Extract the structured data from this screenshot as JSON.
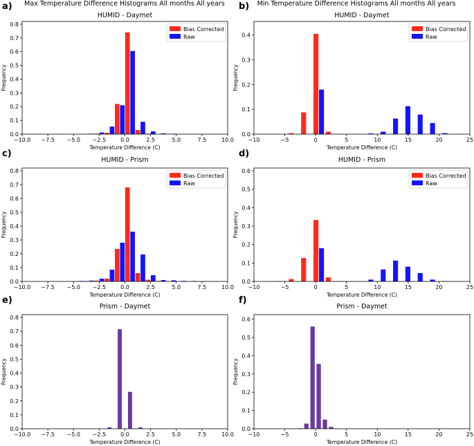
{
  "colors": {
    "bias": "#ff2a1a",
    "raw": "#1414ff",
    "diff": "#6a3aa0"
  },
  "chart_data": [
    {
      "panel": "a)",
      "type": "bar",
      "suptitle": "Max Temperature Difference Histograms All months All years",
      "title": "HUMID - Daymet",
      "xlabel": "Temperature Difference (C)",
      "ylabel": "Frequency",
      "xlim": [
        -10,
        10
      ],
      "ylim": [
        0,
        0.8
      ],
      "xticks": [
        -10,
        -7.5,
        -5,
        -2.5,
        0,
        2.5,
        5,
        7.5,
        10
      ],
      "xtick_labels": [
        "−10.0",
        "−7.5",
        "−5.0",
        "−2.5",
        "0.0",
        "2.5",
        "5.0",
        "7.5",
        "10.0"
      ],
      "yticks": [
        0,
        0.1,
        0.2,
        0.3,
        0.4,
        0.5,
        0.6,
        0.7,
        0.8
      ],
      "ytick_labels": [
        "0.0",
        "0.1",
        "0.2",
        "0.3",
        "0.4",
        "0.5",
        "0.6",
        "0.7",
        "0.8"
      ],
      "bar_width": 0.45,
      "x": [
        -3.5,
        -2.5,
        -1.5,
        -0.5,
        0.5,
        1.5,
        2.5,
        3.5,
        4.5,
        5.5,
        6.5,
        7.5
      ],
      "series": [
        {
          "name": "Bias Corrected",
          "color_key": "bias",
          "offset": -0.25,
          "values": [
            0.002,
            0.004,
            0.01,
            0.22,
            0.74,
            0.03,
            0.004,
            0.001,
            0,
            0,
            0,
            0
          ]
        },
        {
          "name": "Raw",
          "color_key": "raw",
          "offset": 0.25,
          "values": [
            0.003,
            0.012,
            0.055,
            0.21,
            0.605,
            0.09,
            0.02,
            0.006,
            0.003,
            0.002,
            0.001,
            0.001
          ]
        }
      ],
      "legend": "top-right"
    },
    {
      "panel": "b)",
      "type": "bar",
      "suptitle": "Min Temperature Difference Histograms All months All years",
      "title": "HUMID - Daymet",
      "xlabel": "Temperature Difference (C)",
      "ylabel": "Frequency",
      "xlim": [
        -10,
        25
      ],
      "ylim": [
        0,
        0.45
      ],
      "xticks": [
        -10,
        -5,
        0,
        5,
        10,
        15,
        20,
        25
      ],
      "xtick_labels": [
        "−10",
        "−5",
        "0",
        "5",
        "10",
        "15",
        "20",
        "25"
      ],
      "yticks": [
        0,
        0.1,
        0.2,
        0.3,
        0.4
      ],
      "ytick_labels": [
        "0.0",
        "0.1",
        "0.2",
        "0.3",
        "0.4"
      ],
      "bar_width": 0.8,
      "x": [
        -3.5,
        -1.5,
        0.5,
        2.5,
        8.5,
        10.5,
        12.5,
        14.5,
        16.5,
        18.5,
        20.5
      ],
      "series": [
        {
          "name": "Bias Corrected",
          "color_key": "bias",
          "offset": -0.45,
          "values": [
            0.004,
            0.088,
            0.405,
            0.01,
            0,
            0,
            0,
            0,
            0,
            0,
            0
          ]
        },
        {
          "name": "Raw",
          "color_key": "raw",
          "offset": 0.45,
          "values": [
            0,
            0,
            0.18,
            0,
            0.003,
            0.01,
            0.063,
            0.113,
            0.079,
            0.045,
            0.004
          ]
        }
      ],
      "legend": "top-right"
    },
    {
      "panel": "c)",
      "type": "bar",
      "title": "HUMID - Prism",
      "xlabel": "Temperature Difference (C)",
      "ylabel": "Frequency",
      "xlim": [
        -10,
        10
      ],
      "ylim": [
        0,
        0.8
      ],
      "xticks": [
        -10,
        -7.5,
        -5,
        -2.5,
        0,
        2.5,
        5,
        7.5,
        10
      ],
      "xtick_labels": [
        "−10.0",
        "−7.5",
        "−5.0",
        "−2.5",
        "0.0",
        "2.5",
        "5.0",
        "7.5",
        "10.0"
      ],
      "yticks": [
        0,
        0.1,
        0.2,
        0.3,
        0.4,
        0.5,
        0.6,
        0.7,
        0.8
      ],
      "ytick_labels": [
        "0.0",
        "0.1",
        "0.2",
        "0.3",
        "0.4",
        "0.5",
        "0.6",
        "0.7",
        "0.8"
      ],
      "bar_width": 0.45,
      "x": [
        -4.5,
        -3.5,
        -2.5,
        -1.5,
        -0.5,
        0.5,
        1.5,
        2.5,
        3.5,
        4.5,
        5.5,
        6.5,
        7.5,
        8.5
      ],
      "series": [
        {
          "name": "Bias Corrected",
          "color_key": "bias",
          "offset": -0.25,
          "values": [
            0,
            0.003,
            0.006,
            0.02,
            0.235,
            0.68,
            0.06,
            0.012,
            0.004,
            0.001,
            0,
            0,
            0,
            0
          ]
        },
        {
          "name": "Raw",
          "color_key": "raw",
          "offset": 0.25,
          "values": [
            0.003,
            0.006,
            0.02,
            0.085,
            0.28,
            0.36,
            0.195,
            0.045,
            0.01,
            0.008,
            0.004,
            0.003,
            0.002,
            0.002
          ]
        }
      ],
      "legend": "top-right"
    },
    {
      "panel": "d)",
      "type": "bar",
      "title": "HUMID - Prism",
      "xlabel": "Temperature Difference (C)",
      "ylabel": "Frequency",
      "xlim": [
        -10,
        25
      ],
      "ylim": [
        0,
        0.6
      ],
      "xticks": [
        -10,
        -5,
        0,
        5,
        10,
        15,
        20,
        25
      ],
      "xtick_labels": [
        "−10",
        "−5",
        "0",
        "5",
        "10",
        "15",
        "20",
        "25"
      ],
      "yticks": [
        0,
        0.1,
        0.2,
        0.3,
        0.4,
        0.5,
        0.6
      ],
      "ytick_labels": [
        "0.0",
        "0.1",
        "0.2",
        "0.3",
        "0.4",
        "0.5",
        "0.6"
      ],
      "bar_width": 0.8,
      "x": [
        -5.5,
        -3.5,
        -1.5,
        0.5,
        2.5,
        4.5,
        8.5,
        10.5,
        12.5,
        14.5,
        16.5,
        18.5,
        20.5
      ],
      "series": [
        {
          "name": "Bias Corrected",
          "color_key": "bias",
          "offset": -0.45,
          "values": [
            0.002,
            0.013,
            0.127,
            0.333,
            0.022,
            0.002,
            0,
            0,
            0,
            0,
            0,
            0,
            0
          ]
        },
        {
          "name": "Raw",
          "color_key": "raw",
          "offset": 0.45,
          "values": [
            0,
            0,
            0,
            0.18,
            0,
            0,
            0.01,
            0.065,
            0.113,
            0.08,
            0.045,
            0.01,
            0.002
          ]
        }
      ],
      "legend": "top-right"
    },
    {
      "panel": "e)",
      "type": "bar",
      "title": "Prism - Daymet",
      "xlabel": "Temperature Difference (C)",
      "ylabel": "Frequency",
      "xlim": [
        -10,
        10
      ],
      "ylim": [
        0,
        0.8
      ],
      "xticks": [
        -10,
        -7.5,
        -5,
        -2.5,
        0,
        2.5,
        5,
        7.5,
        10
      ],
      "xtick_labels": [
        "−10.0",
        "−7.5",
        "−5.0",
        "−2.5",
        "0.0",
        "2.5",
        "5.0",
        "7.5",
        "10.0"
      ],
      "yticks": [
        0,
        0.1,
        0.2,
        0.3,
        0.4,
        0.5,
        0.6,
        0.7,
        0.8
      ],
      "ytick_labels": [
        "0.0",
        "0.1",
        "0.2",
        "0.3",
        "0.4",
        "0.5",
        "0.6",
        "0.7",
        "0.8"
      ],
      "bar_width": 0.4,
      "x": [
        -2.5,
        -1.5,
        -0.5,
        0.5,
        1.5,
        2.5
      ],
      "series": [
        {
          "name": "Prism - Daymet",
          "color_key": "diff",
          "offset": 0,
          "values": [
            0.002,
            0.01,
            0.715,
            0.265,
            0.01,
            0.002
          ]
        }
      ],
      "legend": "none"
    },
    {
      "panel": "f)",
      "type": "bar",
      "title": "Prism - Daymet",
      "xlabel": "Temperature Difference (C)",
      "ylabel": "Frequency",
      "xlim": [
        -10,
        25
      ],
      "ylim": [
        0,
        0.62
      ],
      "xticks": [
        -10,
        -5,
        0,
        5,
        10,
        15,
        20,
        25
      ],
      "xtick_labels": [
        "−10",
        "−5",
        "0",
        "5",
        "10",
        "15",
        "20",
        "25"
      ],
      "yticks": [
        0,
        0.1,
        0.2,
        0.3,
        0.4,
        0.5,
        0.6
      ],
      "ytick_labels": [
        "0.0",
        "0.1",
        "0.2",
        "0.3",
        "0.4",
        "0.5",
        "0.6"
      ],
      "bar_width": 0.7,
      "x": [
        -2.5,
        -1.5,
        -0.5,
        0.5,
        1.5,
        2.5,
        3.5
      ],
      "series": [
        {
          "name": "Prism - Daymet",
          "color_key": "diff",
          "offset": 0,
          "values": [
            0.003,
            0.028,
            0.56,
            0.355,
            0.05,
            0.01,
            0.002
          ]
        }
      ],
      "legend": "none"
    }
  ]
}
